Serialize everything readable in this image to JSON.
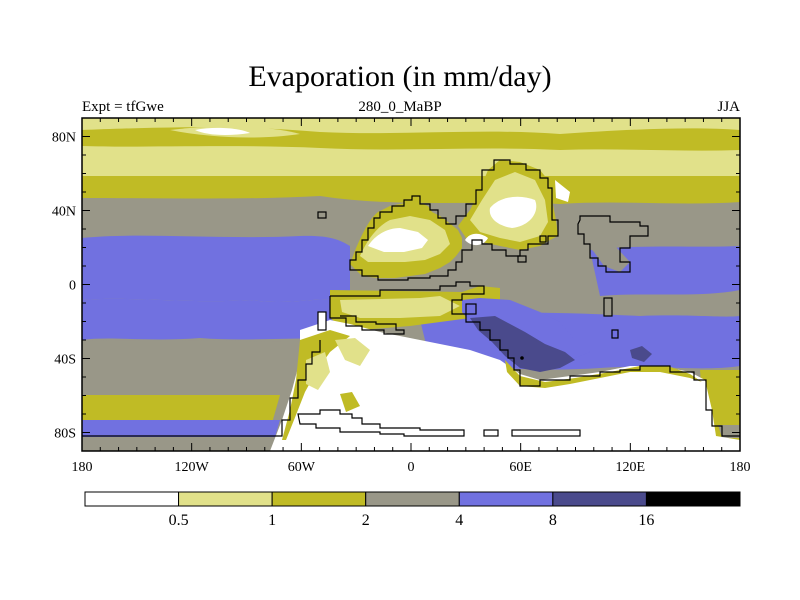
{
  "title": "Evaporation (in mm/day)",
  "left_label": "Expt = tfGwe",
  "center_label": "280_0_MaBP",
  "right_label": "JJA",
  "x_ticks": [
    {
      "value": -180,
      "label": "180"
    },
    {
      "value": -120,
      "label": "120W"
    },
    {
      "value": -60,
      "label": "60W"
    },
    {
      "value": 0,
      "label": "0"
    },
    {
      "value": 60,
      "label": "60E"
    },
    {
      "value": 120,
      "label": "120E"
    },
    {
      "value": 180,
      "label": "180"
    }
  ],
  "y_ticks": [
    {
      "value": 80,
      "label": "80N"
    },
    {
      "value": 40,
      "label": "40N"
    },
    {
      "value": 0,
      "label": "0"
    },
    {
      "value": -40,
      "label": "40S"
    },
    {
      "value": -80,
      "label": "80S"
    }
  ],
  "colorbar": {
    "levels": [
      "0.5",
      "1",
      "2",
      "4",
      "8",
      "16"
    ],
    "colors": [
      "#ffffff",
      "#e1e18a",
      "#c0bb25",
      "#999788",
      "#7171e0",
      "#4a4a8c",
      "#000000"
    ]
  }
}
